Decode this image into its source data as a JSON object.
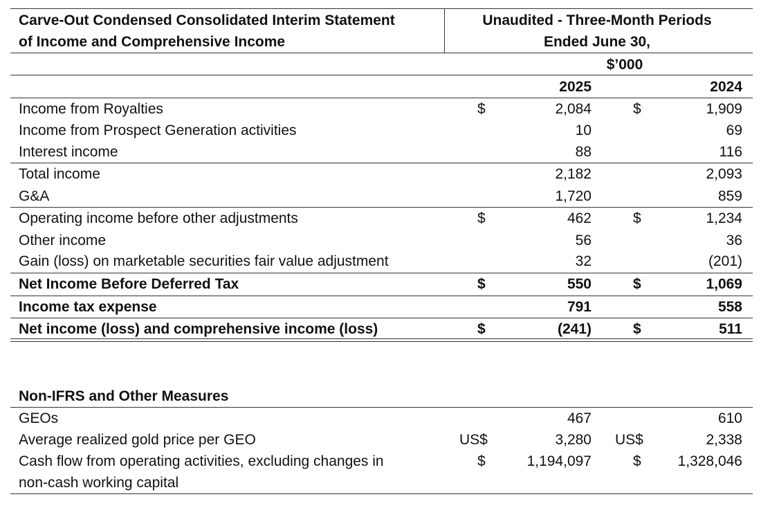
{
  "header": {
    "title_line1": "Carve-Out Condensed Consolidated Interim Statement",
    "title_line2": "of Income and Comprehensive Income",
    "period_line1": "Unaudited - Three-Month Periods",
    "period_line2": "Ended June 30,",
    "unit": "$’000",
    "year_current": "2025",
    "year_prior": "2024"
  },
  "income_rows": [
    {
      "label": "Income from Royalties",
      "cur1": "$",
      "v2025": "2,084",
      "cur2": "$",
      "v2024": "1,909"
    },
    {
      "label": "Income from Prospect Generation activities",
      "cur1": "",
      "v2025": "10",
      "cur2": "",
      "v2024": "69"
    },
    {
      "label": "Interest income",
      "cur1": "",
      "v2025": "88",
      "cur2": "",
      "v2024": "116"
    },
    {
      "label": "Total income",
      "cur1": "",
      "v2025": "2,182",
      "cur2": "",
      "v2024": "2,093"
    },
    {
      "label": "G&A",
      "cur1": "",
      "v2025": "1,720",
      "cur2": "",
      "v2024": "859"
    },
    {
      "label": "Operating income before other adjustments",
      "cur1": "$",
      "v2025": "462",
      "cur2": "$",
      "v2024": "1,234"
    },
    {
      "label": "Other income",
      "cur1": "",
      "v2025": "56",
      "cur2": "",
      "v2024": "36"
    },
    {
      "label": "Gain (loss) on marketable securities fair value adjustment",
      "cur1": "",
      "v2025": "32",
      "cur2": "",
      "v2024": "(201)"
    },
    {
      "label": "Net Income Before Deferred Tax",
      "cur1": "$",
      "v2025": "550",
      "cur2": "$",
      "v2024": "1,069"
    },
    {
      "label": "Income tax expense",
      "cur1": "",
      "v2025": "791",
      "cur2": "",
      "v2024": "558"
    },
    {
      "label": "Net income (loss) and comprehensive income (loss)",
      "cur1": "$",
      "v2025": "(241)",
      "cur2": "$",
      "v2024": "511"
    }
  ],
  "non_ifrs": {
    "heading": "Non-IFRS and Other Measures",
    "rows": [
      {
        "label": "GEOs",
        "cur1": "",
        "v2025": "467",
        "cur2": "",
        "v2024": "610"
      },
      {
        "label": "Average realized gold price per GEO",
        "cur1": "US$",
        "v2025": "3,280",
        "cur2": "US$",
        "v2024": "2,338"
      },
      {
        "label": "Cash flow from operating activities, excluding changes in",
        "label_line2": "non-cash working capital",
        "cur1": "$",
        "v2025": "1,194,097",
        "cur2": "$",
        "v2024": "1,328,046"
      }
    ]
  }
}
